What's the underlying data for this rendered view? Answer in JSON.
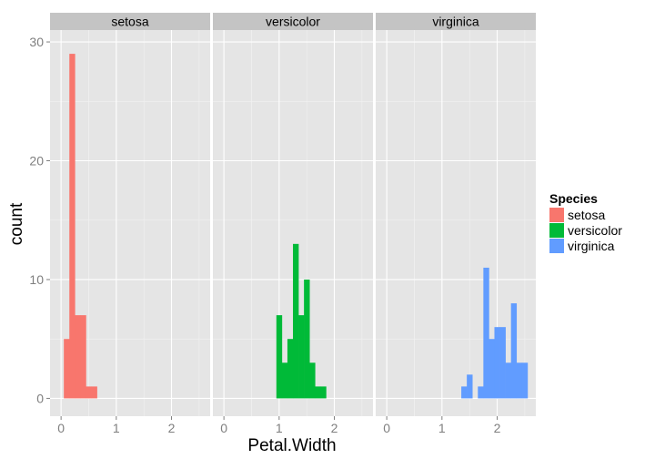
{
  "chart_data": {
    "type": "bar",
    "facet_by": "Species",
    "panels": [
      "setosa",
      "versicolor",
      "virginica"
    ],
    "xlabel": "Petal.Width",
    "ylabel": "count",
    "xlim": [
      -0.2,
      2.7
    ],
    "ylim": [
      -1.5,
      31
    ],
    "xticks": [
      0,
      1,
      2
    ],
    "yticks": [
      0,
      10,
      20,
      30
    ],
    "bin_width": 0.1,
    "grid": true,
    "legend": {
      "position": "right",
      "title": "Species",
      "entries": [
        {
          "label": "setosa",
          "color": "#F8766D"
        },
        {
          "label": "versicolor",
          "color": "#00BA38"
        },
        {
          "label": "virginica",
          "color": "#619CFF"
        }
      ]
    },
    "series": [
      {
        "name": "setosa",
        "color": "#F8766D",
        "bins": [
          {
            "x": 0.1,
            "count": 5
          },
          {
            "x": 0.2,
            "count": 29
          },
          {
            "x": 0.3,
            "count": 7
          },
          {
            "x": 0.4,
            "count": 7
          },
          {
            "x": 0.5,
            "count": 1
          },
          {
            "x": 0.6,
            "count": 1
          }
        ]
      },
      {
        "name": "versicolor",
        "color": "#00BA38",
        "bins": [
          {
            "x": 1.0,
            "count": 7
          },
          {
            "x": 1.1,
            "count": 3
          },
          {
            "x": 1.2,
            "count": 5
          },
          {
            "x": 1.3,
            "count": 13
          },
          {
            "x": 1.4,
            "count": 7
          },
          {
            "x": 1.5,
            "count": 10
          },
          {
            "x": 1.6,
            "count": 3
          },
          {
            "x": 1.7,
            "count": 1
          },
          {
            "x": 1.8,
            "count": 1
          }
        ]
      },
      {
        "name": "virginica",
        "color": "#619CFF",
        "bins": [
          {
            "x": 1.4,
            "count": 1
          },
          {
            "x": 1.5,
            "count": 2
          },
          {
            "x": 1.7,
            "count": 1
          },
          {
            "x": 1.8,
            "count": 11
          },
          {
            "x": 1.9,
            "count": 5
          },
          {
            "x": 2.0,
            "count": 6
          },
          {
            "x": 2.1,
            "count": 6
          },
          {
            "x": 2.2,
            "count": 3
          },
          {
            "x": 2.3,
            "count": 8
          },
          {
            "x": 2.4,
            "count": 3
          },
          {
            "x": 2.5,
            "count": 3
          }
        ]
      }
    ]
  }
}
